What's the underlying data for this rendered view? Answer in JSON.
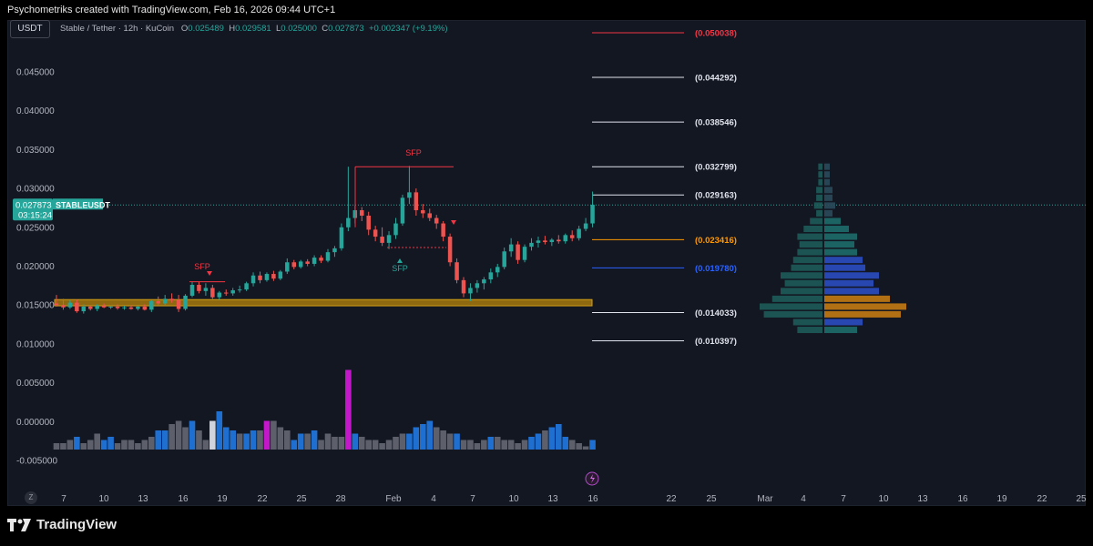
{
  "header": {
    "attribution": "Psychometriks created with TradingView.com, Feb 16, 2026 09:44 UTC+1"
  },
  "toolbar": {
    "symbol_box": "USDT"
  },
  "legend": {
    "title": "Stable / Tether · 12h · KuCoin",
    "o_label": "O",
    "o": "0.025489",
    "h_label": "H",
    "h": "0.029581",
    "l_label": "L",
    "l": "0.025000",
    "c_label": "C",
    "c": "0.027873",
    "change": "+0.002347 (+9.19%)"
  },
  "price_tag": {
    "price": "0.027873",
    "countdown": "03:15:24",
    "symbol": "STABLEUSDT"
  },
  "zoom_button": "Z",
  "branding": {
    "logo_text": "TradingView"
  },
  "colors": {
    "background": "#131722",
    "up": "#26a69a",
    "down": "#ef5350",
    "volume_blue": "#1e6fd0",
    "volume_gray": "#5d606b",
    "volume_magenta": "#c318c9",
    "zone": "#b8860b",
    "resistance_red": "#f23645",
    "level_orange": "#ff9800",
    "level_blue": "#2962ff"
  },
  "chart_data": {
    "type": "candlestick",
    "symbol": "STABLEUSDT",
    "timeframe": "12h",
    "ylim": [
      -0.0062,
      0.0498
    ],
    "y_ticks": [
      "0.045000",
      "0.040000",
      "0.035000",
      "0.030000",
      "0.025000",
      "0.020000",
      "0.015000",
      "0.010000",
      "0.005000",
      "0.000000",
      "-0.005000"
    ],
    "x_ticks": [
      "7",
      "10",
      "13",
      "16",
      "19",
      "22",
      "25",
      "28",
      "Feb",
      "4",
      "7",
      "10",
      "13",
      "16",
      "22",
      "25",
      "Mar",
      "4",
      "7",
      "10",
      "13",
      "16",
      "19",
      "22",
      "25"
    ],
    "candles": [
      {
        "o": 0.0152,
        "h": 0.0163,
        "l": 0.0148,
        "c": 0.015
      },
      {
        "o": 0.015,
        "h": 0.0158,
        "l": 0.0144,
        "c": 0.0147
      },
      {
        "o": 0.0147,
        "h": 0.0156,
        "l": 0.0145,
        "c": 0.0153
      },
      {
        "o": 0.0153,
        "h": 0.0157,
        "l": 0.014,
        "c": 0.0142
      },
      {
        "o": 0.0142,
        "h": 0.0151,
        "l": 0.0139,
        "c": 0.0148
      },
      {
        "o": 0.0148,
        "h": 0.015,
        "l": 0.0143,
        "c": 0.0145
      },
      {
        "o": 0.0145,
        "h": 0.0151,
        "l": 0.0142,
        "c": 0.0149
      },
      {
        "o": 0.0149,
        "h": 0.0152,
        "l": 0.0146,
        "c": 0.0147
      },
      {
        "o": 0.0147,
        "h": 0.015,
        "l": 0.0145,
        "c": 0.0148
      },
      {
        "o": 0.0148,
        "h": 0.0151,
        "l": 0.0144,
        "c": 0.0146
      },
      {
        "o": 0.0146,
        "h": 0.0149,
        "l": 0.0144,
        "c": 0.0147
      },
      {
        "o": 0.0147,
        "h": 0.015,
        "l": 0.0144,
        "c": 0.0145
      },
      {
        "o": 0.0145,
        "h": 0.0149,
        "l": 0.0143,
        "c": 0.0148
      },
      {
        "o": 0.0148,
        "h": 0.0151,
        "l": 0.0143,
        "c": 0.0144
      },
      {
        "o": 0.0144,
        "h": 0.0156,
        "l": 0.0141,
        "c": 0.0155
      },
      {
        "o": 0.0155,
        "h": 0.0161,
        "l": 0.015,
        "c": 0.0152
      },
      {
        "o": 0.0152,
        "h": 0.0163,
        "l": 0.015,
        "c": 0.0158
      },
      {
        "o": 0.0158,
        "h": 0.0165,
        "l": 0.0153,
        "c": 0.0156
      },
      {
        "o": 0.0156,
        "h": 0.0163,
        "l": 0.0141,
        "c": 0.0145
      },
      {
        "o": 0.0145,
        "h": 0.0164,
        "l": 0.0143,
        "c": 0.0162
      },
      {
        "o": 0.0162,
        "h": 0.018,
        "l": 0.016,
        "c": 0.0176
      },
      {
        "o": 0.0176,
        "h": 0.018,
        "l": 0.0165,
        "c": 0.0168
      },
      {
        "o": 0.0168,
        "h": 0.0178,
        "l": 0.0162,
        "c": 0.0172
      },
      {
        "o": 0.0172,
        "h": 0.0176,
        "l": 0.0158,
        "c": 0.016
      },
      {
        "o": 0.016,
        "h": 0.0168,
        "l": 0.0157,
        "c": 0.0166
      },
      {
        "o": 0.0166,
        "h": 0.017,
        "l": 0.0162,
        "c": 0.0165
      },
      {
        "o": 0.0165,
        "h": 0.0172,
        "l": 0.0162,
        "c": 0.0169
      },
      {
        "o": 0.0169,
        "h": 0.0175,
        "l": 0.0166,
        "c": 0.017
      },
      {
        "o": 0.017,
        "h": 0.018,
        "l": 0.0168,
        "c": 0.0178
      },
      {
        "o": 0.0178,
        "h": 0.0192,
        "l": 0.0174,
        "c": 0.0188
      },
      {
        "o": 0.0188,
        "h": 0.0193,
        "l": 0.0178,
        "c": 0.0182
      },
      {
        "o": 0.0182,
        "h": 0.0192,
        "l": 0.018,
        "c": 0.019
      },
      {
        "o": 0.019,
        "h": 0.0194,
        "l": 0.0181,
        "c": 0.0184
      },
      {
        "o": 0.0184,
        "h": 0.0195,
        "l": 0.0182,
        "c": 0.0193
      },
      {
        "o": 0.0193,
        "h": 0.021,
        "l": 0.019,
        "c": 0.0205
      },
      {
        "o": 0.0205,
        "h": 0.0208,
        "l": 0.0196,
        "c": 0.0199
      },
      {
        "o": 0.0199,
        "h": 0.0208,
        "l": 0.0197,
        "c": 0.0206
      },
      {
        "o": 0.0206,
        "h": 0.0209,
        "l": 0.02,
        "c": 0.0203
      },
      {
        "o": 0.0203,
        "h": 0.0214,
        "l": 0.02,
        "c": 0.0211
      },
      {
        "o": 0.0211,
        "h": 0.0214,
        "l": 0.0204,
        "c": 0.0207
      },
      {
        "o": 0.0207,
        "h": 0.0222,
        "l": 0.0205,
        "c": 0.0218
      },
      {
        "o": 0.0218,
        "h": 0.0226,
        "l": 0.0212,
        "c": 0.0223
      },
      {
        "o": 0.0223,
        "h": 0.0255,
        "l": 0.022,
        "c": 0.025
      },
      {
        "o": 0.025,
        "h": 0.0328,
        "l": 0.0245,
        "c": 0.0262
      },
      {
        "o": 0.0262,
        "h": 0.0278,
        "l": 0.0255,
        "c": 0.0272
      },
      {
        "o": 0.0272,
        "h": 0.0276,
        "l": 0.0258,
        "c": 0.0265
      },
      {
        "o": 0.0265,
        "h": 0.027,
        "l": 0.024,
        "c": 0.0247
      },
      {
        "o": 0.0247,
        "h": 0.0252,
        "l": 0.0232,
        "c": 0.0238
      },
      {
        "o": 0.0238,
        "h": 0.025,
        "l": 0.0226,
        "c": 0.023
      },
      {
        "o": 0.023,
        "h": 0.0245,
        "l": 0.0222,
        "c": 0.024
      },
      {
        "o": 0.024,
        "h": 0.0262,
        "l": 0.0235,
        "c": 0.0255
      },
      {
        "o": 0.0255,
        "h": 0.0292,
        "l": 0.0252,
        "c": 0.0288
      },
      {
        "o": 0.0288,
        "h": 0.0329,
        "l": 0.028,
        "c": 0.0295
      },
      {
        "o": 0.0295,
        "h": 0.03,
        "l": 0.0265,
        "c": 0.0272
      },
      {
        "o": 0.0272,
        "h": 0.028,
        "l": 0.0262,
        "c": 0.0268
      },
      {
        "o": 0.0268,
        "h": 0.0274,
        "l": 0.0258,
        "c": 0.0262
      },
      {
        "o": 0.0262,
        "h": 0.0266,
        "l": 0.0248,
        "c": 0.0255
      },
      {
        "o": 0.0255,
        "h": 0.0258,
        "l": 0.0232,
        "c": 0.0238
      },
      {
        "o": 0.0238,
        "h": 0.0242,
        "l": 0.02,
        "c": 0.0205
      },
      {
        "o": 0.0205,
        "h": 0.021,
        "l": 0.0178,
        "c": 0.0182
      },
      {
        "o": 0.0182,
        "h": 0.0186,
        "l": 0.016,
        "c": 0.0165
      },
      {
        "o": 0.0165,
        "h": 0.0178,
        "l": 0.0155,
        "c": 0.0172
      },
      {
        "o": 0.0172,
        "h": 0.0182,
        "l": 0.0166,
        "c": 0.0178
      },
      {
        "o": 0.0178,
        "h": 0.0186,
        "l": 0.017,
        "c": 0.0183
      },
      {
        "o": 0.0183,
        "h": 0.0197,
        "l": 0.0178,
        "c": 0.0192
      },
      {
        "o": 0.0192,
        "h": 0.0203,
        "l": 0.0186,
        "c": 0.0199
      },
      {
        "o": 0.0199,
        "h": 0.0224,
        "l": 0.0196,
        "c": 0.0219
      },
      {
        "o": 0.0219,
        "h": 0.0236,
        "l": 0.0212,
        "c": 0.0228
      },
      {
        "o": 0.0228,
        "h": 0.0232,
        "l": 0.0203,
        "c": 0.0208
      },
      {
        "o": 0.0208,
        "h": 0.0228,
        "l": 0.0205,
        "c": 0.0225
      },
      {
        "o": 0.0225,
        "h": 0.0236,
        "l": 0.022,
        "c": 0.023
      },
      {
        "o": 0.023,
        "h": 0.0238,
        "l": 0.0224,
        "c": 0.0233
      },
      {
        "o": 0.0233,
        "h": 0.0239,
        "l": 0.0228,
        "c": 0.0231
      },
      {
        "o": 0.0231,
        "h": 0.0236,
        "l": 0.0226,
        "c": 0.0234
      },
      {
        "o": 0.0234,
        "h": 0.024,
        "l": 0.0229,
        "c": 0.0232
      },
      {
        "o": 0.0232,
        "h": 0.0242,
        "l": 0.0229,
        "c": 0.024
      },
      {
        "o": 0.024,
        "h": 0.0246,
        "l": 0.0232,
        "c": 0.0236
      },
      {
        "o": 0.0236,
        "h": 0.0252,
        "l": 0.0233,
        "c": 0.0248
      },
      {
        "o": 0.0248,
        "h": 0.0262,
        "l": 0.0245,
        "c": 0.0255
      },
      {
        "o": 0.0255,
        "h": 0.0296,
        "l": 0.025,
        "c": 0.0279
      }
    ],
    "volume_values": [
      2,
      2,
      3,
      4,
      2,
      3,
      5,
      3,
      4,
      2,
      3,
      3,
      2,
      3,
      4,
      6,
      6,
      8,
      9,
      7,
      9,
      6,
      3,
      9,
      12,
      7,
      6,
      5,
      5,
      6,
      6,
      9,
      9,
      7,
      6,
      3,
      5,
      5,
      6,
      3,
      5,
      4,
      4,
      25,
      5,
      4,
      3,
      3,
      2,
      3,
      4,
      5,
      5,
      7,
      8,
      9,
      7,
      6,
      5,
      5,
      3,
      3,
      2,
      3,
      4,
      4,
      3,
      3,
      2,
      3,
      4,
      5,
      6,
      7,
      8,
      4,
      3,
      2,
      1,
      3
    ],
    "volume_colors": [
      "g",
      "g",
      "g",
      "b",
      "g",
      "g",
      "g",
      "b",
      "b",
      "g",
      "g",
      "g",
      "g",
      "g",
      "g",
      "b",
      "b",
      "g",
      "g",
      "g",
      "b",
      "g",
      "g",
      "w",
      "b",
      "b",
      "b",
      "g",
      "b",
      "b",
      "g",
      "m",
      "g",
      "g",
      "g",
      "b",
      "b",
      "g",
      "b",
      "g",
      "g",
      "g",
      "g",
      "m",
      "b",
      "g",
      "g",
      "g",
      "g",
      "g",
      "g",
      "g",
      "b",
      "b",
      "b",
      "b",
      "g",
      "g",
      "g",
      "b",
      "g",
      "g",
      "g",
      "g",
      "b",
      "g",
      "g",
      "g",
      "g",
      "g",
      "b",
      "b",
      "g",
      "b",
      "b",
      "b",
      "g",
      "g",
      "g",
      "b"
    ],
    "horizontal_levels": [
      {
        "label": "(0.050038)",
        "value": 0.050038,
        "color": "red"
      },
      {
        "label": "(0.044292)",
        "value": 0.044292,
        "color": "white"
      },
      {
        "label": "(0.038546)",
        "value": 0.038546,
        "color": "white"
      },
      {
        "label": "(0.032799)",
        "value": 0.032799,
        "color": "white"
      },
      {
        "label": "(0.029163)",
        "value": 0.029163,
        "color": "white"
      },
      {
        "label": "(0.023416)",
        "value": 0.023416,
        "color": "orange"
      },
      {
        "label": "(0.019780)",
        "value": 0.01978,
        "color": "blue"
      },
      {
        "label": "(0.014033)",
        "value": 0.014033,
        "color": "white"
      },
      {
        "label": "(0.010397)",
        "value": 0.010397,
        "color": "white"
      }
    ],
    "support_zone": [
      0.0149,
      0.0157
    ],
    "sfp_annotations": [
      {
        "label": "SFP",
        "color": "red"
      },
      {
        "label": "SFP",
        "color": "red"
      },
      {
        "label": "SFP",
        "color": "green"
      }
    ],
    "current_price": 0.027873,
    "volume_profile": [
      {
        "value": 0.0328,
        "vol": 2
      },
      {
        "value": 0.0318,
        "vol": 2
      },
      {
        "value": 0.0308,
        "vol": 2
      },
      {
        "value": 0.0298,
        "vol": 3
      },
      {
        "value": 0.0288,
        "vol": 3
      },
      {
        "value": 0.0278,
        "vol": 4
      },
      {
        "value": 0.0268,
        "vol": 3
      },
      {
        "value": 0.0258,
        "vol": 6
      },
      {
        "value": 0.0248,
        "vol": 9
      },
      {
        "value": 0.0238,
        "vol": 12
      },
      {
        "value": 0.0228,
        "vol": 11
      },
      {
        "value": 0.0218,
        "vol": 12
      },
      {
        "value": 0.0208,
        "vol": 14
      },
      {
        "value": 0.0198,
        "vol": 15
      },
      {
        "value": 0.0188,
        "vol": 20
      },
      {
        "value": 0.0178,
        "vol": 18
      },
      {
        "value": 0.0168,
        "vol": 20
      },
      {
        "value": 0.0158,
        "vol": 24
      },
      {
        "value": 0.0148,
        "vol": 30
      },
      {
        "value": 0.0138,
        "vol": 28
      },
      {
        "value": 0.0128,
        "vol": 14
      },
      {
        "value": 0.0118,
        "vol": 12
      }
    ]
  }
}
